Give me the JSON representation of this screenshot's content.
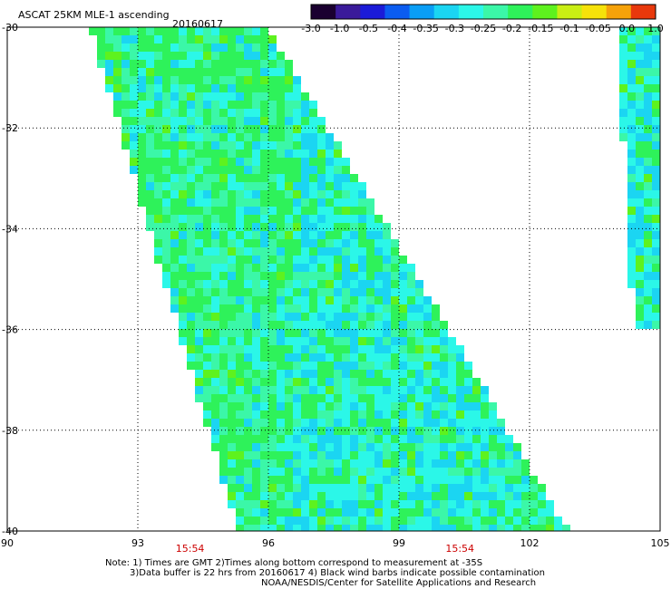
{
  "chart_data": {
    "type": "heatmap",
    "title": "ASCAT 25KM MLE-1 ascending",
    "date": "20160617",
    "colorbar": {
      "tick_labels": [
        "-3.0",
        "-1.0",
        "-0.5",
        "-0.4",
        "-0.35",
        "-0.3",
        "-0.25",
        "-0.2",
        "-0.15",
        "-0.1",
        "-0.05",
        "0.0",
        "1.0"
      ],
      "colors": [
        "#1a0030",
        "#3a1a9a",
        "#1b1bd8",
        "#0b5cf0",
        "#0a9ef5",
        "#1bd5f2",
        "#2bf7e8",
        "#3bf7a8",
        "#2ef25a",
        "#5ef21e",
        "#c9ee14",
        "#f6e20a",
        "#f5a20a",
        "#e8380c"
      ]
    },
    "x_axis": {
      "tick_labels": [
        "90",
        "93",
        "96",
        "99",
        "102",
        "105"
      ],
      "xlim": [
        90,
        105
      ]
    },
    "y_axis": {
      "tick_labels": [
        "-30",
        "-32",
        "-34",
        "-36",
        "-38",
        "-40"
      ],
      "ylim": [
        -40,
        -30
      ]
    },
    "pass_times": [
      {
        "lon": 94.2,
        "label": "15:54"
      },
      {
        "lon": 100.4,
        "label": "15:54"
      }
    ],
    "swaths": [
      {
        "name": "main",
        "corners": [
          [
            91.9,
            -30.0
          ],
          [
            96.0,
            -30.0
          ],
          [
            102.9,
            -40.0
          ],
          [
            95.3,
            -40.0
          ]
        ],
        "dominant_value_range": [
          -0.3,
          -0.15
        ]
      },
      {
        "name": "east",
        "corners": [
          [
            104.0,
            -30.0
          ],
          [
            105.0,
            -30.0
          ],
          [
            105.0,
            -36.0
          ],
          [
            104.4,
            -36.0
          ]
        ],
        "dominant_value_range": [
          -0.3,
          -0.2
        ]
      }
    ],
    "grid": true
  },
  "notes": {
    "line1": "Note: 1) Times are GMT 2)Times along bottom correspond to measurement at -35S",
    "line2": "3)Data buffer is 22 hrs from 20160617 4) Black wind barbs indicate possible contamination",
    "line3": "NOAA/NESDIS/Center for Satellite Applications and Research"
  }
}
